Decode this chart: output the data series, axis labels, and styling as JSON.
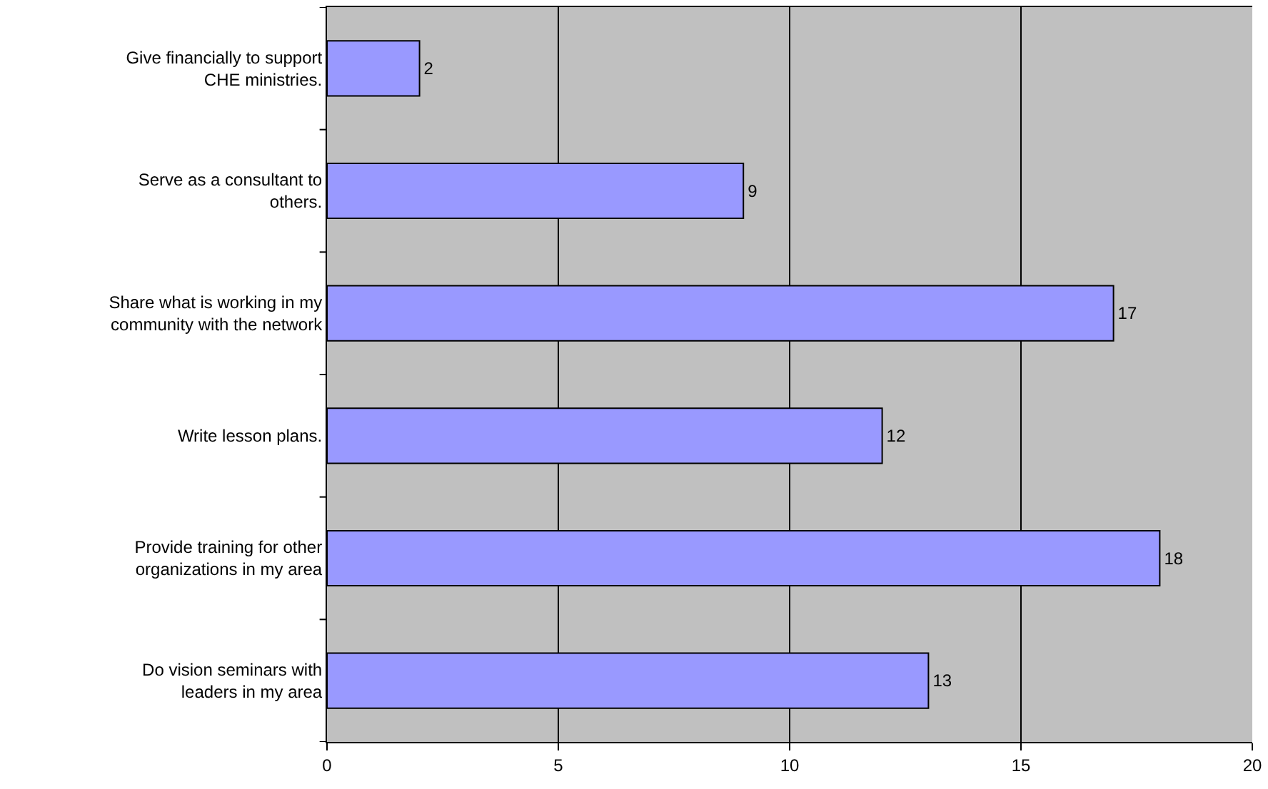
{
  "chart_data": {
    "type": "bar",
    "orientation": "horizontal",
    "categories": [
      "Give financially to support\nCHE ministries.",
      "Serve as a consultant to\nothers.",
      "Share what is working in my\ncommunity with the network",
      "Write lesson plans.",
      "Provide training for other\norganizations in my area",
      "Do vision seminars with\nleaders in my area"
    ],
    "values": [
      2,
      9,
      17,
      12,
      18,
      13
    ],
    "color": "#9999ff",
    "xlim": [
      0,
      20
    ],
    "xticks": [
      0,
      5,
      10,
      15,
      20
    ],
    "grid": "x",
    "data_labels": true
  }
}
